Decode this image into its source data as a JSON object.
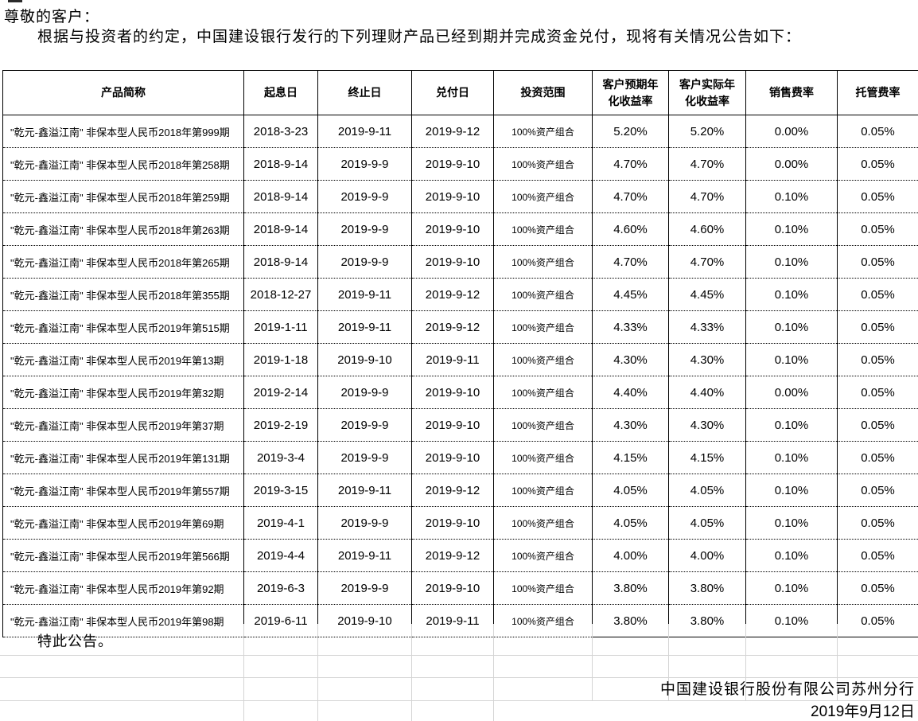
{
  "document": {
    "greeting": "尊敬的客户：",
    "intro": "根据与投资者的约定，中国建设银行发行的下列理财产品已经到期并完成资金兑付，现将有关情况公告如下：",
    "closing": "特此公告。",
    "issuer": "中国建设银行股份有限公司苏州分行",
    "issue_date": "2019年9月12日"
  },
  "table": {
    "headers": [
      "产品简称",
      "起息日",
      "终止日",
      "兑付日",
      "投资范围",
      "客户预期年\n化收益率",
      "客户实际年\n化收益率",
      "销售费率",
      "托管费率"
    ],
    "rows": [
      [
        "\"乾元-鑫溢江南\" 非保本型人民币2018年第999期",
        "2018-3-23",
        "2019-9-11",
        "2019-9-12",
        "100%资产组合",
        "5.20%",
        "5.20%",
        "0.00%",
        "0.05%"
      ],
      [
        "\"乾元-鑫溢江南\" 非保本型人民币2018年第258期",
        "2018-9-14",
        "2019-9-9",
        "2019-9-10",
        "100%资产组合",
        "4.70%",
        "4.70%",
        "0.00%",
        "0.05%"
      ],
      [
        "\"乾元-鑫溢江南\" 非保本型人民币2018年第259期",
        "2018-9-14",
        "2019-9-9",
        "2019-9-10",
        "100%资产组合",
        "4.70%",
        "4.70%",
        "0.10%",
        "0.05%"
      ],
      [
        "\"乾元-鑫溢江南\" 非保本型人民币2018年第263期",
        "2018-9-14",
        "2019-9-9",
        "2019-9-10",
        "100%资产组合",
        "4.60%",
        "4.60%",
        "0.10%",
        "0.05%"
      ],
      [
        "\"乾元-鑫溢江南\" 非保本型人民币2018年第265期",
        "2018-9-14",
        "2019-9-9",
        "2019-9-10",
        "100%资产组合",
        "4.70%",
        "4.70%",
        "0.10%",
        "0.05%"
      ],
      [
        "\"乾元-鑫溢江南\" 非保本型人民币2018年第355期",
        "2018-12-27",
        "2019-9-11",
        "2019-9-12",
        "100%资产组合",
        "4.45%",
        "4.45%",
        "0.10%",
        "0.05%"
      ],
      [
        "\"乾元-鑫溢江南\" 非保本型人民币2019年第515期",
        "2019-1-11",
        "2019-9-11",
        "2019-9-12",
        "100%资产组合",
        "4.33%",
        "4.33%",
        "0.10%",
        "0.05%"
      ],
      [
        "\"乾元-鑫溢江南\" 非保本型人民币2019年第13期",
        "2019-1-18",
        "2019-9-10",
        "2019-9-11",
        "100%资产组合",
        "4.30%",
        "4.30%",
        "0.10%",
        "0.05%"
      ],
      [
        "\"乾元-鑫溢江南\" 非保本型人民币2019年第32期",
        "2019-2-14",
        "2019-9-9",
        "2019-9-10",
        "100%资产组合",
        "4.40%",
        "4.40%",
        "0.00%",
        "0.05%"
      ],
      [
        "\"乾元-鑫溢江南\" 非保本型人民币2019年第37期",
        "2019-2-19",
        "2019-9-9",
        "2019-9-10",
        "100%资产组合",
        "4.30%",
        "4.30%",
        "0.10%",
        "0.05%"
      ],
      [
        "\"乾元-鑫溢江南\" 非保本型人民币2019年第131期",
        "2019-3-4",
        "2019-9-9",
        "2019-9-10",
        "100%资产组合",
        "4.15%",
        "4.15%",
        "0.10%",
        "0.05%"
      ],
      [
        "\"乾元-鑫溢江南\" 非保本型人民币2019年第557期",
        "2019-3-15",
        "2019-9-11",
        "2019-9-12",
        "100%资产组合",
        "4.05%",
        "4.05%",
        "0.10%",
        "0.05%"
      ],
      [
        "\"乾元-鑫溢江南\" 非保本型人民币2019年第69期",
        "2019-4-1",
        "2019-9-9",
        "2019-9-10",
        "100%资产组合",
        "4.05%",
        "4.05%",
        "0.10%",
        "0.05%"
      ],
      [
        "\"乾元-鑫溢江南\" 非保本型人民币2019年第566期",
        "2019-4-4",
        "2019-9-11",
        "2019-9-12",
        "100%资产组合",
        "4.00%",
        "4.00%",
        "0.10%",
        "0.05%"
      ],
      [
        "\"乾元-鑫溢江南\" 非保本型人民币2019年第92期",
        "2019-6-3",
        "2019-9-9",
        "2019-9-10",
        "100%资产组合",
        "3.80%",
        "3.80%",
        "0.10%",
        "0.05%"
      ],
      [
        "\"乾元-鑫溢江南\" 非保本型人民币2019年第98期",
        "2019-6-11",
        "2019-9-10",
        "2019-9-11",
        "100%资产组合",
        "3.80%",
        "3.80%",
        "0.10%",
        "0.05%"
      ]
    ]
  }
}
